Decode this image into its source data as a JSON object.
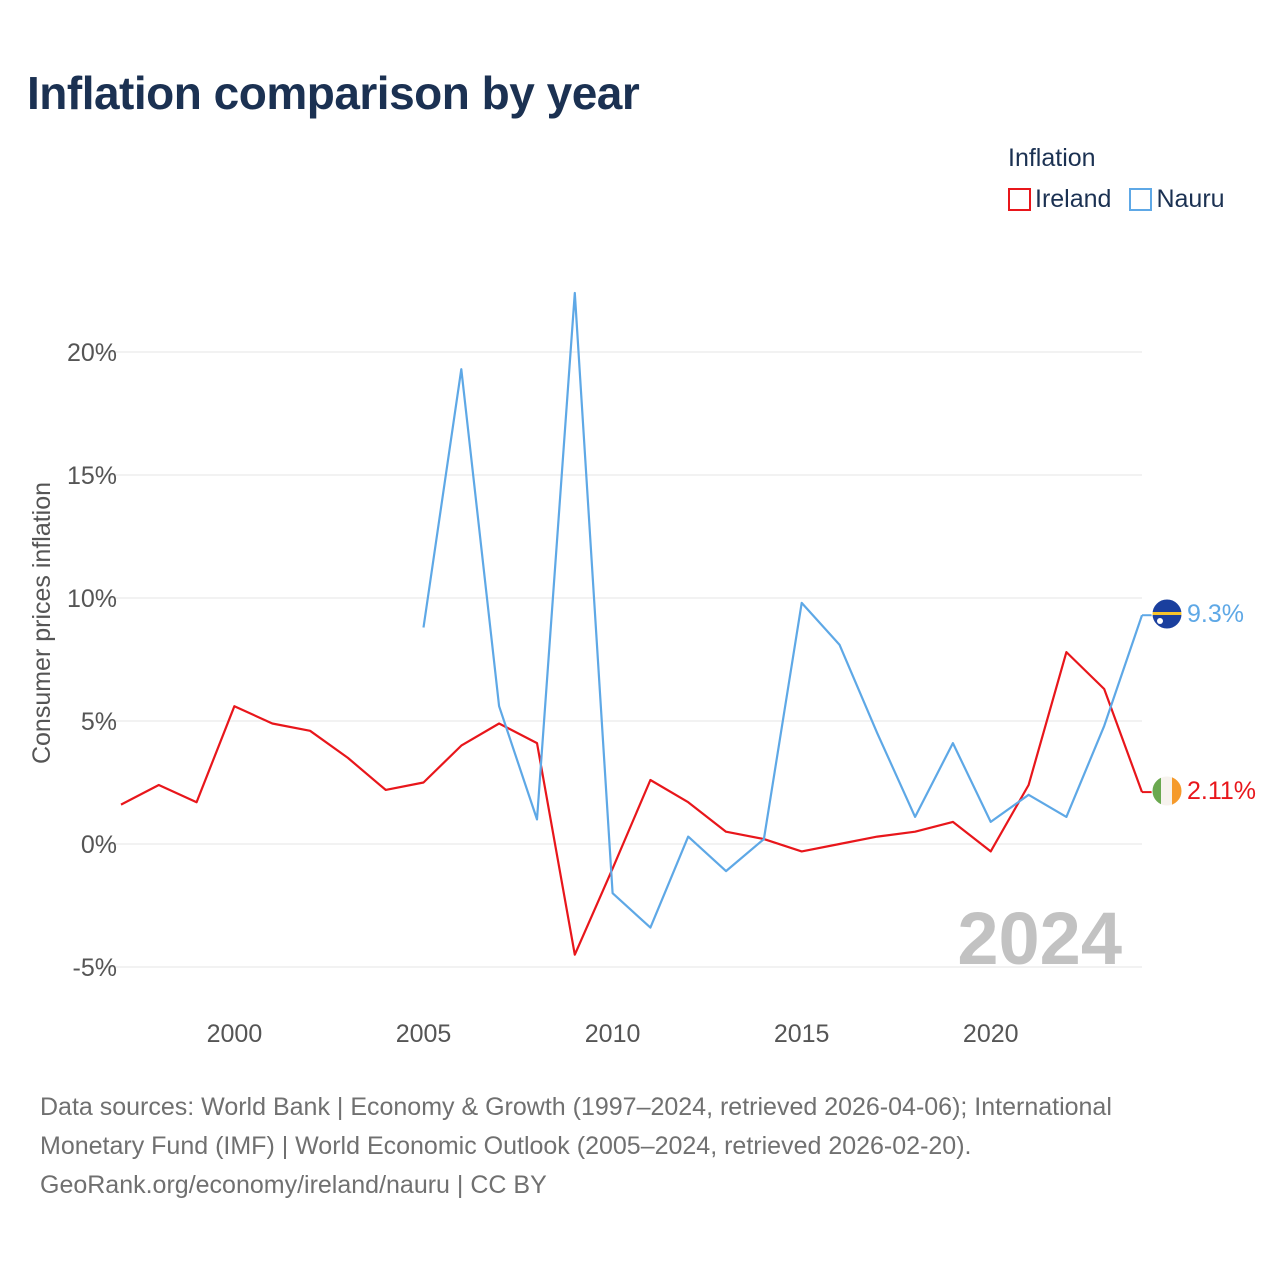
{
  "title": "Inflation comparison by year",
  "legend": {
    "title": "Inflation",
    "items": [
      {
        "label": "Ireland",
        "color": "#e8161b"
      },
      {
        "label": "Nauru",
        "color": "#5ea8e6"
      }
    ]
  },
  "chart_data": {
    "type": "line",
    "title": "Inflation comparison by year",
    "xlabel": "",
    "ylabel": "Consumer prices inflation",
    "xlim": [
      1997,
      2024
    ],
    "ylim": [
      -6,
      23
    ],
    "grid": true,
    "legend_position": "top-right",
    "x_ticks": [
      2000,
      2005,
      2010,
      2015,
      2020
    ],
    "x_tick_labels": [
      "2000",
      "2005",
      "2010",
      "2015",
      "2020"
    ],
    "y_ticks": [
      -5,
      0,
      5,
      10,
      15,
      20
    ],
    "y_tick_labels": [
      "-5%",
      "0%",
      "5%",
      "10%",
      "15%",
      "20%"
    ],
    "year_watermark": "2024",
    "series": [
      {
        "name": "Ireland",
        "color": "#e8161b",
        "end_label": "2.11%",
        "flag": "ireland",
        "x": [
          1997,
          1998,
          1999,
          2000,
          2001,
          2002,
          2003,
          2004,
          2005,
          2006,
          2007,
          2008,
          2009,
          2010,
          2011,
          2012,
          2013,
          2014,
          2015,
          2016,
          2017,
          2018,
          2019,
          2020,
          2021,
          2022,
          2023,
          2024
        ],
        "values": [
          1.6,
          2.4,
          1.7,
          5.6,
          4.9,
          4.6,
          3.5,
          2.2,
          2.5,
          4.0,
          4.9,
          4.1,
          -4.5,
          -1.0,
          2.6,
          1.7,
          0.5,
          0.2,
          -0.3,
          0.0,
          0.3,
          0.5,
          0.9,
          -0.3,
          2.4,
          7.8,
          6.3,
          2.11
        ]
      },
      {
        "name": "Nauru",
        "color": "#5ea8e6",
        "end_label": "9.3%",
        "flag": "nauru",
        "x": [
          2005,
          2006,
          2007,
          2008,
          2009,
          2010,
          2011,
          2012,
          2013,
          2014,
          2015,
          2016,
          2017,
          2018,
          2019,
          2020,
          2021,
          2022,
          2023,
          2024
        ],
        "values": [
          8.8,
          19.3,
          5.6,
          1.0,
          22.4,
          -2.0,
          -3.4,
          0.3,
          -1.1,
          0.2,
          9.8,
          8.1,
          4.5,
          1.1,
          4.1,
          0.9,
          2.0,
          1.1,
          4.8,
          9.3
        ]
      }
    ]
  },
  "sources": {
    "line1": "Data sources: World Bank | Economy & Growth (1997–2024, retrieved 2026-04-06); International",
    "line2": "Monetary Fund (IMF) | World Economic Outlook (2005–2024, retrieved 2026-02-20).",
    "line3": "GeoRank.org/economy/ireland/nauru | CC BY"
  }
}
